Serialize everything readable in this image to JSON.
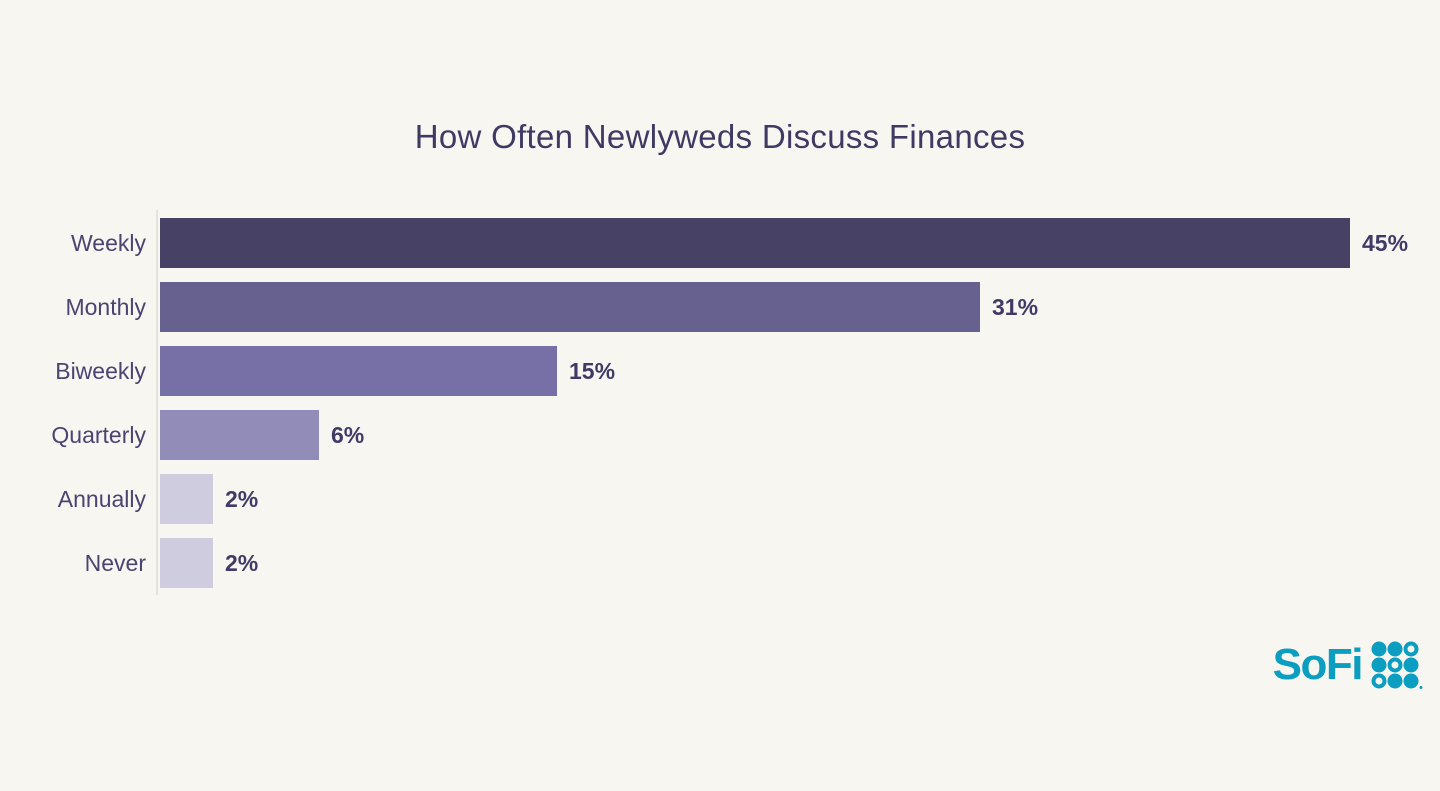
{
  "chart_data": {
    "type": "bar",
    "orientation": "horizontal",
    "title": "How Often Newlyweds Discuss Finances",
    "categories": [
      "Weekly",
      "Monthly",
      "Biweekly",
      "Quarterly",
      "Annually",
      "Never"
    ],
    "values": [
      45,
      31,
      15,
      6,
      2,
      2
    ],
    "value_labels": [
      "45%",
      "31%",
      "15%",
      "6%",
      "2%",
      "2%"
    ],
    "bar_colors": [
      "#474166",
      "#67618f",
      "#7670a6",
      "#928cb8",
      "#cfccdf",
      "#cfccdf"
    ],
    "xlim": [
      0,
      45
    ],
    "xlabel": "",
    "ylabel": "",
    "grid": false,
    "legend": false,
    "data_label_position": "outside-end"
  },
  "branding": {
    "logo_text": "SoFi",
    "logo_color": "#0b9ec0",
    "dot_grid": [
      [
        "filled",
        "filled",
        "outline"
      ],
      [
        "filled",
        "outline",
        "filled"
      ],
      [
        "outline",
        "filled",
        "filled"
      ]
    ]
  },
  "colors": {
    "background": "#f8f6f1",
    "title_text": "#3f3a64",
    "category_label_text": "#4a4470",
    "value_label_text": "#403b66",
    "axis_line": "#e5e2db"
  }
}
